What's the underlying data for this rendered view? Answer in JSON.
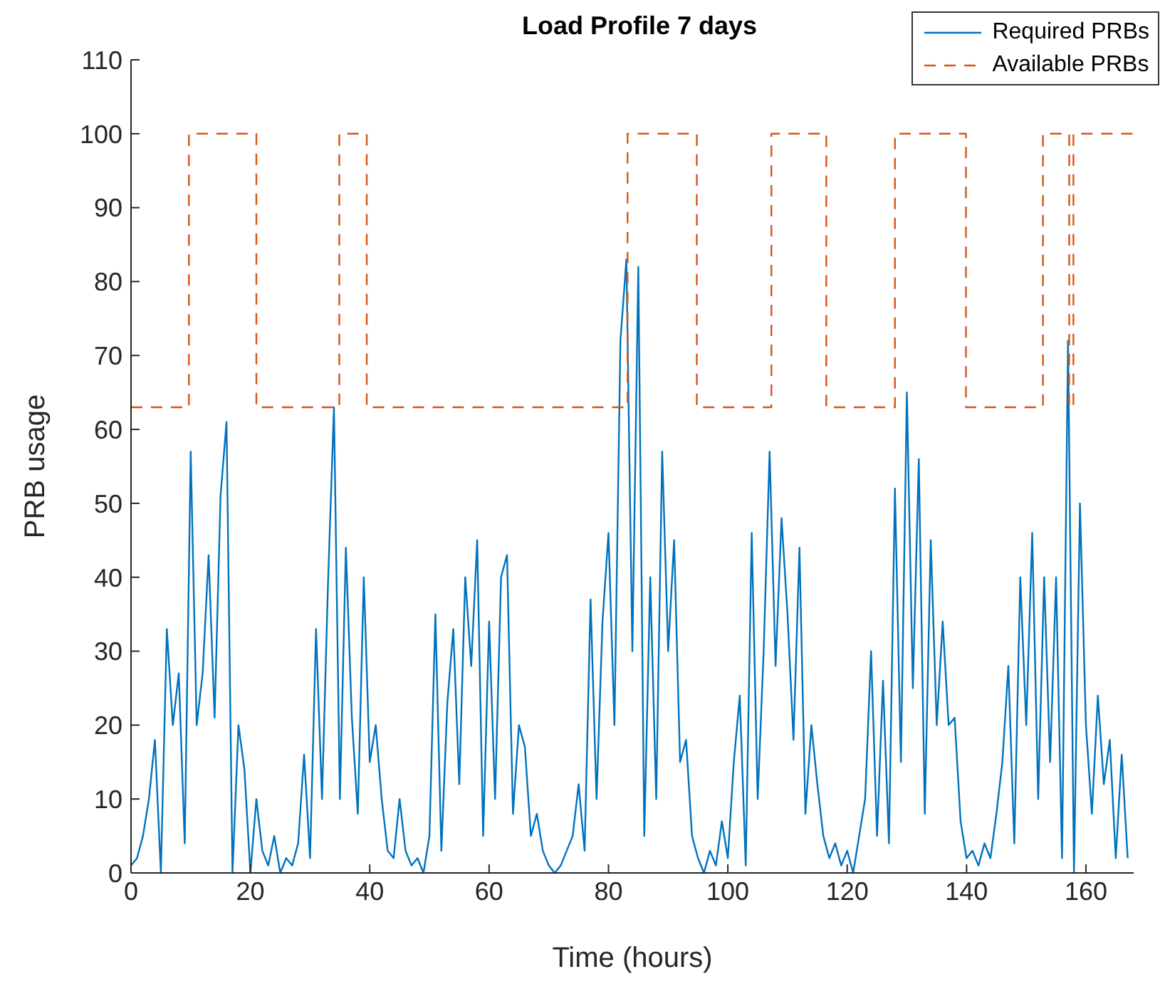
{
  "chart_data": {
    "type": "line",
    "title": "Load Profile 7 days",
    "xlabel": "Time (hours)",
    "ylabel": "PRB usage",
    "xlim": [
      0,
      168
    ],
    "xticks": [
      0,
      20,
      40,
      60,
      80,
      100,
      120,
      140,
      160
    ],
    "ylim": [
      0,
      110
    ],
    "yticks": [
      0,
      10,
      20,
      30,
      40,
      50,
      60,
      70,
      80,
      90,
      100,
      110
    ],
    "grid": false,
    "legend": "top right",
    "marker": "none",
    "series": [
      {
        "name": "Required PRBs",
        "type": "line",
        "line_style": "solid",
        "color": "#0072bd",
        "x": [
          0,
          1,
          2,
          3,
          4,
          5,
          6,
          7,
          8,
          9,
          10,
          11,
          12,
          13,
          14,
          15,
          16,
          17,
          18,
          19,
          20,
          21,
          22,
          23,
          24,
          25,
          26,
          27,
          28,
          29,
          30,
          31,
          32,
          33,
          34,
          35,
          36,
          37,
          38,
          39,
          40,
          41,
          42,
          43,
          44,
          45,
          46,
          47,
          48,
          49,
          50,
          51,
          52,
          53,
          54,
          55,
          56,
          57,
          58,
          59,
          60,
          61,
          62,
          63,
          64,
          65,
          66,
          67,
          68,
          69,
          70,
          71,
          72,
          73,
          74,
          75,
          76,
          77,
          78,
          79,
          80,
          81,
          82,
          83,
          84,
          85,
          86,
          87,
          88,
          89,
          90,
          91,
          92,
          93,
          94,
          95,
          96,
          97,
          98,
          99,
          100,
          101,
          102,
          103,
          104,
          105,
          106,
          107,
          108,
          109,
          110,
          111,
          112,
          113,
          114,
          115,
          116,
          117,
          118,
          119,
          120,
          121,
          122,
          123,
          124,
          125,
          126,
          127,
          128,
          129,
          130,
          131,
          132,
          133,
          134,
          135,
          136,
          137,
          138,
          139,
          140,
          141,
          142,
          143,
          144,
          145,
          146,
          147,
          148,
          149,
          150,
          151,
          152,
          153,
          154,
          155,
          156,
          157,
          158,
          159,
          160,
          161,
          162,
          163,
          164,
          165,
          166,
          167
        ],
        "values": [
          1,
          2,
          5,
          10,
          18,
          0,
          33,
          20,
          27,
          4,
          57,
          20,
          27,
          43,
          21,
          51,
          61,
          0,
          20,
          14,
          0,
          10,
          3,
          1,
          5,
          0,
          2,
          1,
          4,
          16,
          2,
          33,
          10,
          39,
          63,
          10,
          44,
          21,
          8,
          40,
          15,
          20,
          10,
          3,
          2,
          10,
          3,
          1,
          2,
          0,
          5,
          35,
          3,
          23,
          33,
          12,
          40,
          28,
          45,
          5,
          34,
          10,
          40,
          43,
          8,
          20,
          17,
          5,
          8,
          3,
          1,
          0,
          1,
          3,
          5,
          12,
          3,
          37,
          10,
          34,
          46,
          20,
          72,
          83,
          30,
          82,
          5,
          40,
          10,
          57,
          30,
          45,
          15,
          18,
          5,
          2,
          0,
          3,
          1,
          7,
          2,
          15,
          24,
          1,
          46,
          10,
          30,
          57,
          28,
          48,
          35,
          18,
          44,
          8,
          20,
          12,
          5,
          2,
          4,
          1,
          3,
          0,
          5,
          10,
          30,
          5,
          26,
          4,
          52,
          15,
          65,
          25,
          56,
          8,
          45,
          20,
          34,
          20,
          21,
          7,
          2,
          3,
          1,
          4,
          2,
          8,
          15,
          28,
          4,
          40,
          20,
          46,
          10,
          40,
          15,
          40,
          2,
          72,
          0,
          50,
          20,
          8,
          24,
          12,
          18,
          2,
          16,
          2
        ]
      },
      {
        "name": "Available PRBs",
        "type": "step",
        "line_style": "dashed",
        "color": "#d95319",
        "x": [
          0,
          9.7,
          21,
          34.9,
          39.5,
          83.2,
          94.8,
          107.3,
          116.5,
          128,
          139.9,
          152.8,
          157.2,
          157.9,
          168
        ],
        "values": [
          63,
          100,
          63,
          100,
          63,
          100,
          63,
          100,
          63,
          100,
          63,
          100,
          63,
          100,
          100
        ]
      }
    ]
  }
}
